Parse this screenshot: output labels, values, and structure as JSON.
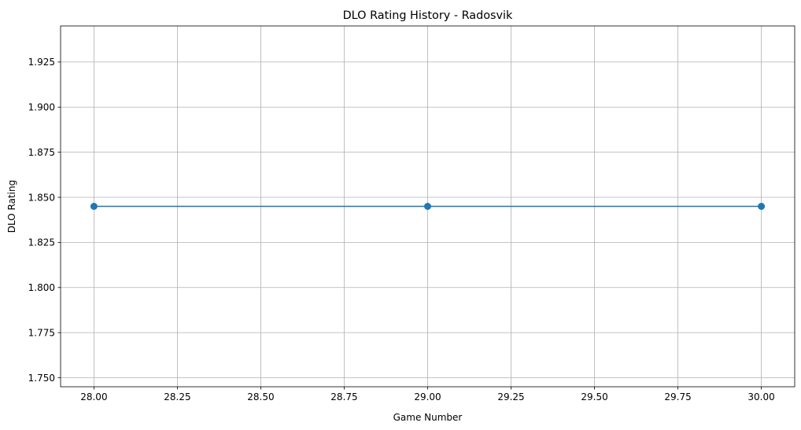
{
  "chart_data": {
    "type": "line",
    "title": "DLO Rating History - Radosvik",
    "xlabel": "Game Number",
    "ylabel": "DLO Rating",
    "xlim": [
      27.9,
      30.1
    ],
    "ylim": [
      1.745,
      1.945
    ],
    "xticks": [
      28.0,
      28.25,
      28.5,
      28.75,
      29.0,
      29.25,
      29.5,
      29.75,
      30.0
    ],
    "xtick_labels": [
      "28.00",
      "28.25",
      "28.50",
      "28.75",
      "29.00",
      "29.25",
      "29.50",
      "29.75",
      "30.00"
    ],
    "yticks": [
      1.75,
      1.775,
      1.8,
      1.825,
      1.85,
      1.875,
      1.9,
      1.925
    ],
    "ytick_labels": [
      "1.750",
      "1.775",
      "1.800",
      "1.825",
      "1.850",
      "1.875",
      "1.900",
      "1.925"
    ],
    "grid": true,
    "series": [
      {
        "x": [
          28,
          29,
          30
        ],
        "values": [
          1.845,
          1.845,
          1.845
        ],
        "color": "#1f77b4",
        "marker": "circle"
      }
    ]
  }
}
